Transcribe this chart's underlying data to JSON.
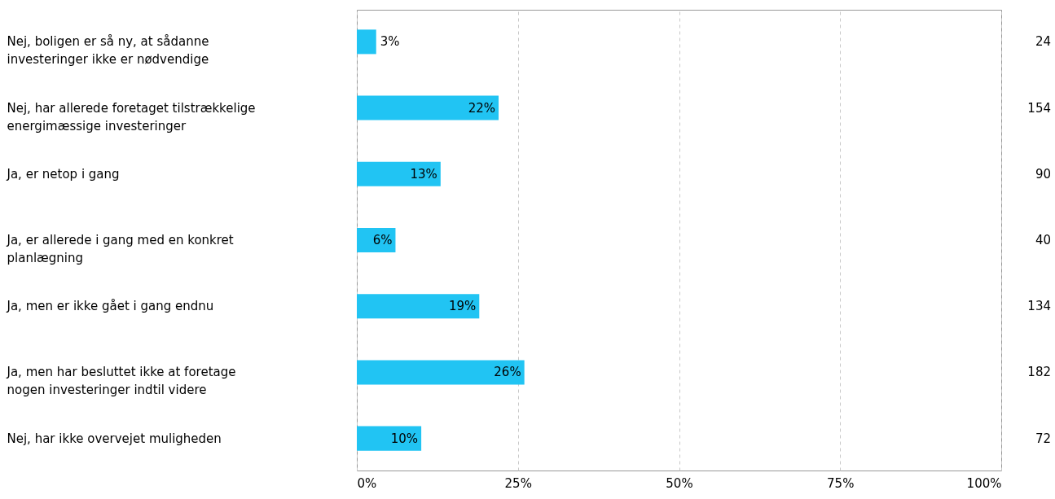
{
  "chart_data": {
    "type": "bar",
    "orientation": "horizontal",
    "categories": [
      "Nej, boligen er så ny, at sådanne investeringer ikke er nødvendige",
      "Nej, har allerede foretaget tilstrækkelige energimæssige investeringer",
      "Ja, er netop i gang",
      "Ja, er allerede i gang med en konkret planlægning",
      "Ja, men er ikke gået i gang endnu",
      "Ja, men har besluttet ikke at foretage nogen investeringer indtil videre",
      "Nej, har ikke overvejet muligheden"
    ],
    "values": [
      3,
      22,
      13,
      6,
      19,
      26,
      10
    ],
    "value_labels": [
      "3%",
      "22%",
      "13%",
      "6%",
      "19%",
      "26%",
      "10%"
    ],
    "color": "#21c4f3",
    "xlim": [
      0,
      100
    ],
    "xticks": [
      {
        "value": 0,
        "label": "0%"
      },
      {
        "value": 25,
        "label": "25%"
      },
      {
        "value": 50,
        "label": "50%"
      },
      {
        "value": 75,
        "label": "75%"
      },
      {
        "value": 100,
        "label": "100%"
      }
    ],
    "grid": "x",
    "annotations": [
      "24",
      "154",
      "90",
      "40",
      "134",
      "182",
      "72"
    ]
  }
}
